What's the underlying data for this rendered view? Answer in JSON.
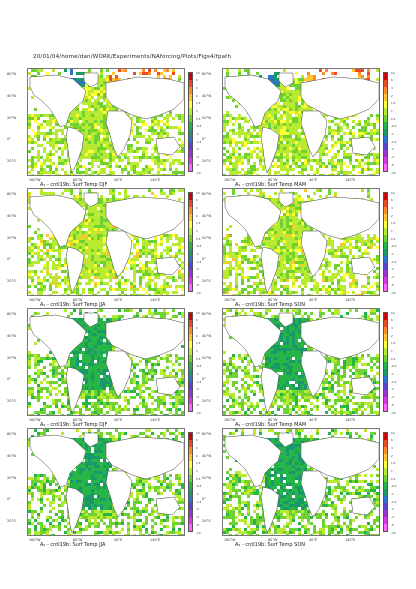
{
  "header": {
    "path": "20/01/04/home/dan/WORK/Experiments/NAforcing/Plots/Figs4/fpath"
  },
  "axes": {
    "lat_labels": [
      "60°N",
      "40°N",
      "20°N",
      "0°",
      "20°S"
    ],
    "lon_labels": [
      "160°W",
      "80°W",
      "40°E",
      "140°E"
    ]
  },
  "colorbar": {
    "ticks": [
      "10",
      "6",
      "4",
      "2",
      "1.5",
      "1",
      "0.5",
      "-0.5",
      "-1",
      "-1.5",
      "-2",
      "-4",
      "-6",
      "-10"
    ],
    "colors": [
      "#d40000",
      "#f04a1e",
      "#ff8a2a",
      "#ffc531",
      "#ffff33",
      "#b8ea32",
      "#6fd233",
      "#27b548",
      "#19996a",
      "#2c74c6",
      "#5a40d6",
      "#9b33d6",
      "#d838e8",
      "#ff66ff"
    ]
  },
  "panels": [
    {
      "caption": "A₁ - cntl19b: Surf Temp DJF",
      "style": "warm_north"
    },
    {
      "caption": "A₁ - cntl19b: Surf Temp MAM",
      "style": "warm_north2"
    },
    {
      "caption": "A₁ - cntl19b: Surf Temp JJA",
      "style": "neutral"
    },
    {
      "caption": "A₁ - cntl19b: Surf Temp SON",
      "style": "neutral2"
    },
    {
      "caption": "A₂ - cntl19b: Surf Temp DJF",
      "style": "dark_atlantic"
    },
    {
      "caption": "A₂ - cntl19b: Surf Temp MAM",
      "style": "dark_atlantic2"
    },
    {
      "caption": "A₂ - cntl19b: Surf Temp JJA",
      "style": "dark_atlantic3"
    },
    {
      "caption": "A₂ - cntl19b: Surf Temp SON",
      "style": "dark_atlantic4"
    }
  ]
}
